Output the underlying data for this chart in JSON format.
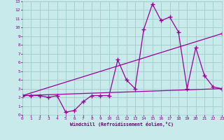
{
  "xlabel": "Windchill (Refroidissement éolien,°C)",
  "background_color": "#c8eaea",
  "grid_color": "#a0cccc",
  "line_color": "#990099",
  "xmin": 0,
  "xmax": 23,
  "ymin": 0,
  "ymax": 13,
  "series1_x": [
    0,
    1,
    2,
    3,
    4,
    5,
    6,
    7,
    8,
    9,
    10,
    11,
    12,
    13,
    14,
    15,
    16,
    17,
    18,
    19,
    20,
    21,
    22,
    23
  ],
  "series1_y": [
    2.2,
    2.2,
    2.2,
    2.0,
    2.2,
    0.3,
    0.5,
    1.5,
    2.2,
    2.2,
    2.2,
    6.3,
    4.0,
    3.0,
    9.8,
    12.7,
    10.8,
    11.2,
    9.5,
    3.0,
    7.7,
    4.5,
    3.2,
    3.0
  ],
  "series2_x": [
    0,
    23
  ],
  "series2_y": [
    2.2,
    9.3
  ],
  "series3_x": [
    0,
    23
  ],
  "series3_y": [
    2.2,
    3.0
  ]
}
